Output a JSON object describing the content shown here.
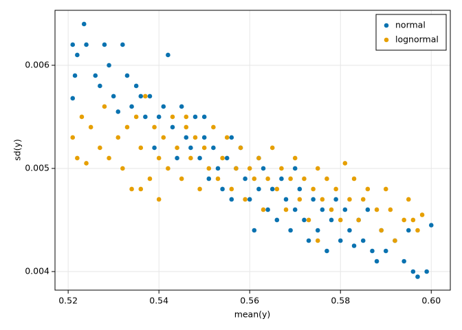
{
  "chart_data": {
    "type": "scatter",
    "xlabel": "mean(y)",
    "ylabel": "sd(y)",
    "xlim": [
      0.5171,
      0.6042
    ],
    "ylim": [
      0.00382,
      0.006533
    ],
    "xticks": [
      0.52,
      0.54,
      0.56,
      0.58,
      {
        "value": 0.6,
        "label": "0.60"
      }
    ],
    "yticks": [
      0.004,
      0.005,
      0.006
    ],
    "grid": true,
    "legend": "top-right",
    "series": [
      {
        "name": "normal",
        "color": "#0a72b0",
        "x": [
          0.521,
          0.5235,
          0.521,
          0.522,
          0.524,
          0.526,
          0.527,
          0.529,
          0.53,
          0.532,
          0.533,
          0.534,
          0.535,
          0.536,
          0.537,
          0.538,
          0.54,
          0.541,
          0.542,
          0.543,
          0.545,
          0.546,
          0.547,
          0.548,
          0.549,
          0.55,
          0.551,
          0.552,
          0.553,
          0.554,
          0.555,
          0.556,
          0.557,
          0.558,
          0.559,
          0.56,
          0.561,
          0.562,
          0.563,
          0.564,
          0.565,
          0.566,
          0.567,
          0.568,
          0.569,
          0.57,
          0.571,
          0.572,
          0.573,
          0.574,
          0.575,
          0.576,
          0.577,
          0.578,
          0.579,
          0.58,
          0.581,
          0.582,
          0.583,
          0.584,
          0.585,
          0.586,
          0.587,
          0.588,
          0.589,
          0.59,
          0.592,
          0.594,
          0.595,
          0.596,
          0.597,
          0.599,
          0.6,
          0.5215,
          0.528,
          0.531,
          0.539,
          0.544,
          0.55,
          0.556,
          0.562,
          0.57
        ],
        "values": [
          0.0062,
          0.0064,
          0.00568,
          0.0061,
          0.0062,
          0.0059,
          0.0058,
          0.006,
          0.0057,
          0.0062,
          0.0059,
          0.0056,
          0.0058,
          0.0057,
          0.0055,
          0.0057,
          0.0055,
          0.0056,
          0.0061,
          0.0054,
          0.0056,
          0.0053,
          0.0052,
          0.0055,
          0.0051,
          0.0053,
          0.0049,
          0.0052,
          0.005,
          0.0048,
          0.0051,
          0.0047,
          0.005,
          0.0052,
          0.0049,
          0.0047,
          0.0044,
          0.0048,
          0.005,
          0.0046,
          0.0048,
          0.0045,
          0.0049,
          0.0047,
          0.0044,
          0.0046,
          0.0048,
          0.0045,
          0.0043,
          0.0047,
          0.0044,
          0.0046,
          0.0042,
          0.0045,
          0.0047,
          0.0043,
          0.0046,
          0.0044,
          0.00425,
          0.0045,
          0.0043,
          0.0046,
          0.0042,
          0.0041,
          0.0044,
          0.0042,
          0.0043,
          0.0041,
          0.0044,
          0.004,
          0.00395,
          0.004,
          0.00445,
          0.0059,
          0.0062,
          0.00555,
          0.0052,
          0.0051,
          0.0055,
          0.0053,
          0.0051,
          0.005
        ]
      },
      {
        "name": "lognormal",
        "color": "#e69f00",
        "x": [
          0.521,
          0.522,
          0.523,
          0.524,
          0.525,
          0.527,
          0.528,
          0.529,
          0.531,
          0.532,
          0.533,
          0.534,
          0.535,
          0.536,
          0.537,
          0.538,
          0.539,
          0.54,
          0.541,
          0.542,
          0.543,
          0.544,
          0.545,
          0.546,
          0.547,
          0.548,
          0.549,
          0.55,
          0.551,
          0.552,
          0.553,
          0.554,
          0.555,
          0.556,
          0.557,
          0.558,
          0.559,
          0.56,
          0.561,
          0.562,
          0.563,
          0.564,
          0.565,
          0.566,
          0.567,
          0.568,
          0.569,
          0.57,
          0.571,
          0.572,
          0.573,
          0.574,
          0.575,
          0.576,
          0.577,
          0.578,
          0.579,
          0.58,
          0.581,
          0.582,
          0.583,
          0.584,
          0.585,
          0.586,
          0.588,
          0.589,
          0.59,
          0.591,
          0.592,
          0.594,
          0.595,
          0.596,
          0.597,
          0.598,
          0.536,
          0.54,
          0.546,
          0.575
        ],
        "values": [
          0.0053,
          0.0051,
          0.0055,
          0.00505,
          0.0054,
          0.0052,
          0.0056,
          0.0051,
          0.0053,
          0.005,
          0.0054,
          0.0048,
          0.0055,
          0.0052,
          0.0057,
          0.0049,
          0.0054,
          0.0051,
          0.0053,
          0.005,
          0.0055,
          0.0052,
          0.0049,
          0.0054,
          0.0051,
          0.0053,
          0.0048,
          0.0052,
          0.005,
          0.0054,
          0.0049,
          0.0051,
          0.0053,
          0.0048,
          0.005,
          0.0052,
          0.0047,
          0.005,
          0.0049,
          0.0051,
          0.0046,
          0.0049,
          0.0052,
          0.0048,
          0.005,
          0.0046,
          0.0049,
          0.0051,
          0.0047,
          0.0049,
          0.0045,
          0.0048,
          0.005,
          0.0047,
          0.0049,
          0.0046,
          0.0048,
          0.0045,
          0.00505,
          0.0047,
          0.0049,
          0.0045,
          0.0047,
          0.0048,
          0.0046,
          0.0044,
          0.0048,
          0.0046,
          0.0043,
          0.0045,
          0.0047,
          0.0045,
          0.0044,
          0.00455,
          0.0048,
          0.0047,
          0.0055,
          0.0043
        ]
      }
    ]
  }
}
